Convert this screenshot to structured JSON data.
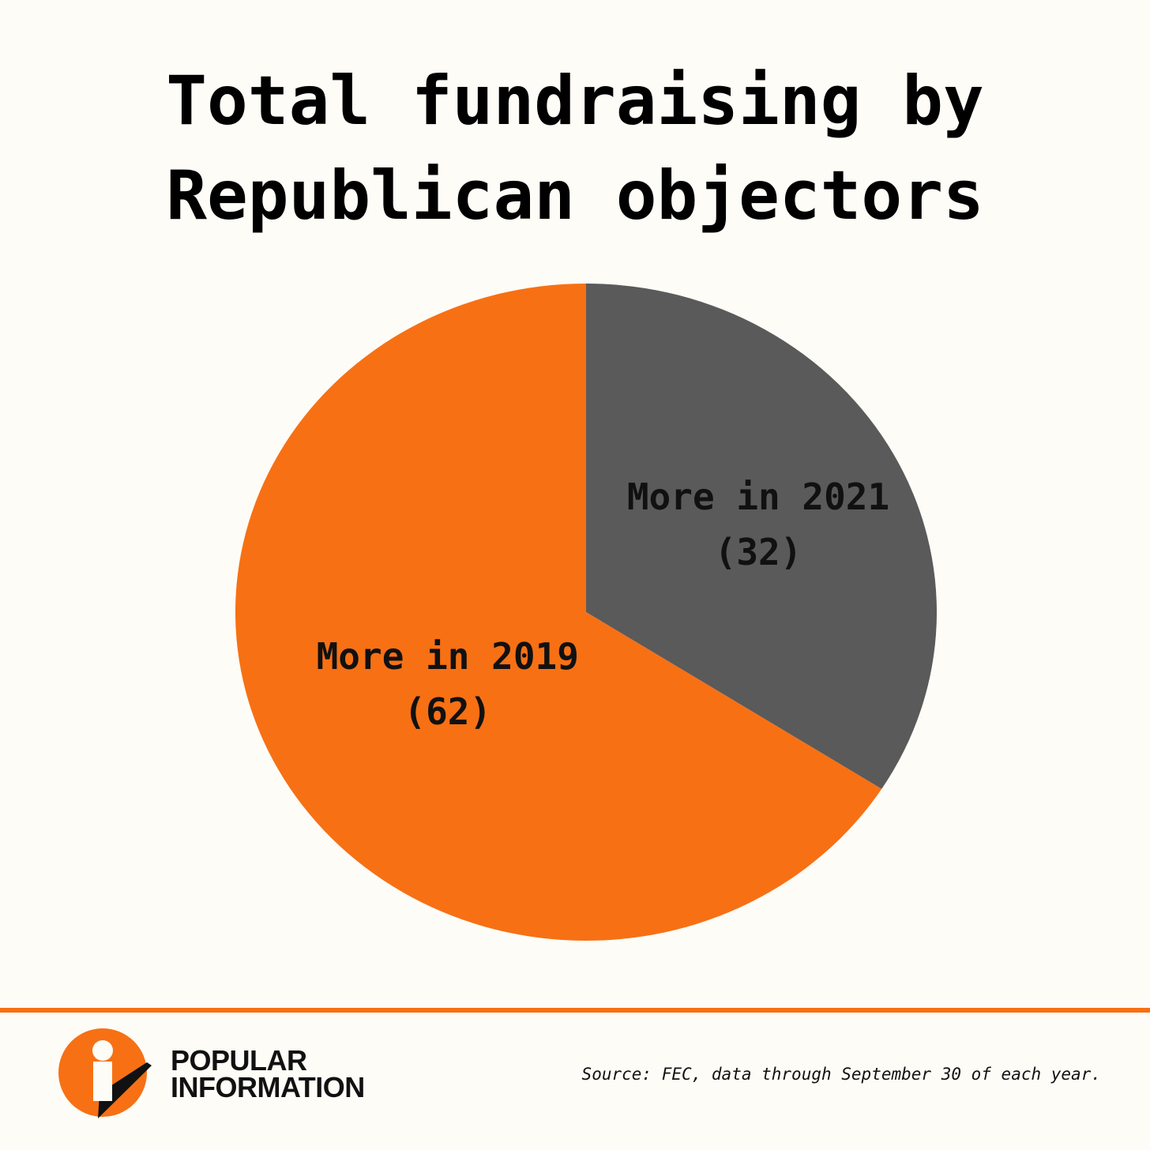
{
  "chart_data": {
    "type": "pie",
    "title": "Total fundraising by Republican objectors",
    "title_lines": [
      "Total fundraising by",
      "Republican objectors"
    ],
    "slices": [
      {
        "label": "More in 2021",
        "value": 32,
        "value_text": "(32)",
        "color": "#5a5a5a"
      },
      {
        "label": "More in 2019",
        "value": 62,
        "value_text": "(62)",
        "color": "#f77014"
      }
    ],
    "start_angle": "top",
    "direction": "clockwise"
  },
  "footer": {
    "brand_line1": "POPULAR",
    "brand_line2": "INFORMATION",
    "source": "Source: FEC, data through September 30 of each year.",
    "accent_color": "#f77014"
  }
}
